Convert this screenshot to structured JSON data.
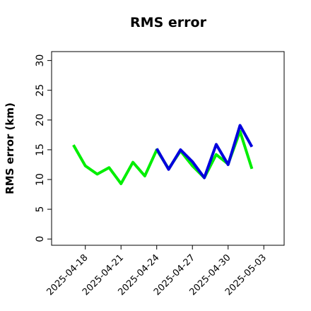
{
  "chart_data": {
    "type": "line",
    "title": "RMS error",
    "y_label": "RMS error (km)",
    "x": [
      "2025-04-17",
      "2025-04-18",
      "2025-04-19",
      "2025-04-20",
      "2025-04-21",
      "2025-04-22",
      "2025-04-23",
      "2025-04-24",
      "2025-04-25",
      "2025-04-26",
      "2025-04-27",
      "2025-04-28",
      "2025-04-29",
      "2025-04-30",
      "2025-05-01",
      "2025-05-02"
    ],
    "series": [
      {
        "color": "#00ee00",
        "values": [
          15.8,
          12.3,
          10.9,
          12.0,
          9.3,
          12.9,
          10.6,
          15.0,
          11.8,
          14.8,
          12.3,
          10.3,
          14.2,
          12.6,
          18.1,
          11.8
        ]
      },
      {
        "color": "#0000dd",
        "values": [
          null,
          null,
          null,
          null,
          null,
          null,
          null,
          15.2,
          11.7,
          15.0,
          13.0,
          10.3,
          15.9,
          12.5,
          19.1,
          15.5
        ]
      }
    ],
    "xlim": [
      "2025-04-15T04:00",
      "2025-05-04T17:00"
    ],
    "xticks": [
      "2025-04-18",
      "2025-04-21",
      "2025-04-24",
      "2025-04-27",
      "2025-04-30",
      "2025-05-03"
    ],
    "xtick_colors": [
      "#000000",
      "#000000",
      "#228b22",
      "#000000",
      "#000000",
      "#000000"
    ],
    "ylim": [
      -1.05,
      31.5
    ],
    "yticks": [
      0,
      5,
      10,
      15,
      20,
      25,
      30
    ]
  }
}
